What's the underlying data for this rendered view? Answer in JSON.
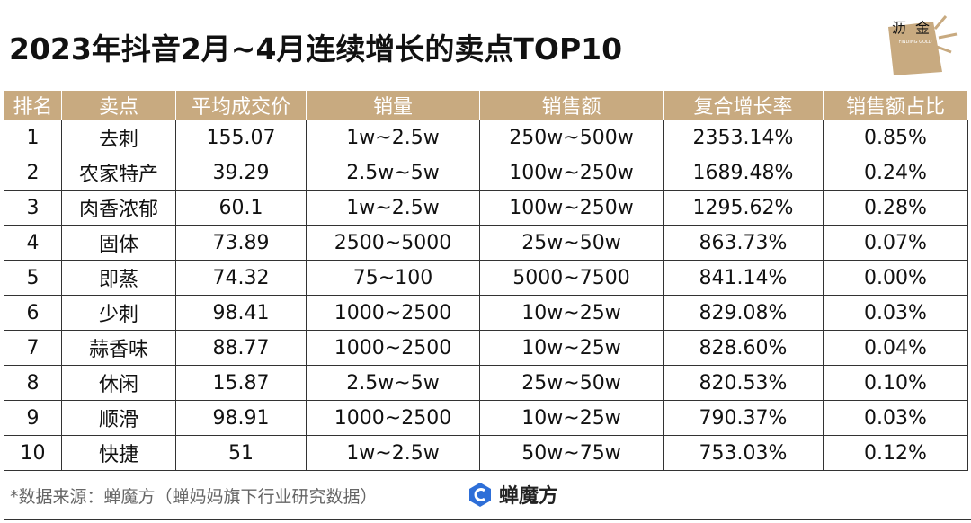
{
  "header": {
    "title": "2023年抖音2月~4月连续增长的卖点TOP10",
    "logo": {
      "text": "沥金",
      "subtext": "FINDING GOLD"
    }
  },
  "table": {
    "columns": [
      "排名",
      "卖点",
      "平均成交价",
      "销量",
      "销售额",
      "复合增长率",
      "销售额占比"
    ],
    "rows": [
      [
        "1",
        "去刺",
        "155.07",
        "1w~2.5w",
        "250w~500w",
        "2353.14%",
        "0.85%"
      ],
      [
        "2",
        "农家特产",
        "39.29",
        "2.5w~5w",
        "100w~250w",
        "1689.48%",
        "0.24%"
      ],
      [
        "3",
        "肉香浓郁",
        "60.1",
        "1w~2.5w",
        "100w~250w",
        "1295.62%",
        "0.28%"
      ],
      [
        "4",
        "固体",
        "73.89",
        "2500~5000",
        "25w~50w",
        "863.73%",
        "0.07%"
      ],
      [
        "5",
        "即蒸",
        "74.32",
        "75~100",
        "5000~7500",
        "841.14%",
        "0.00%"
      ],
      [
        "6",
        "少刺",
        "98.41",
        "1000~2500",
        "10w~25w",
        "829.08%",
        "0.03%"
      ],
      [
        "7",
        "蒜香味",
        "88.77",
        "1000~2500",
        "10w~25w",
        "828.60%",
        "0.04%"
      ],
      [
        "8",
        "休闲",
        "15.87",
        "2.5w~5w",
        "25w~50w",
        "820.53%",
        "0.10%"
      ],
      [
        "9",
        "顺滑",
        "98.91",
        "1000~2500",
        "10w~25w",
        "790.37%",
        "0.03%"
      ],
      [
        "10",
        "快捷",
        "51",
        "1w~2.5w",
        "50w~75w",
        "753.03%",
        "0.12%"
      ]
    ]
  },
  "footer": {
    "source": "*数据来源：蝉魔方（蝉妈妈旗下行业研究数据）",
    "brand": "蝉魔方"
  }
}
